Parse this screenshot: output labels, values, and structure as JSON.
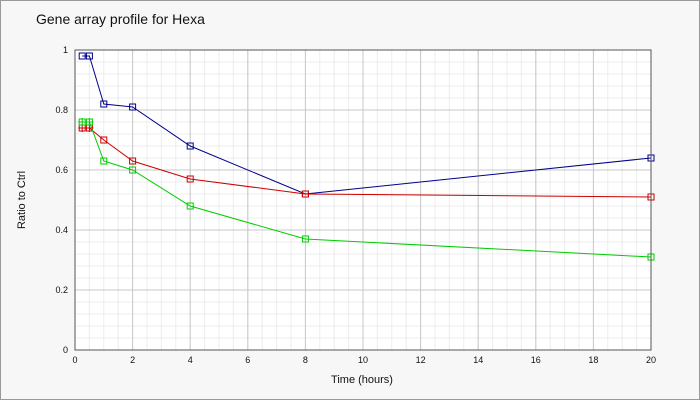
{
  "chart_data": {
    "type": "line",
    "title": "Gene array profile for Hexa",
    "xlabel": "Time (hours)",
    "ylabel": "Ratio to Ctrl",
    "xlim": [
      0,
      20
    ],
    "ylim": [
      0,
      1
    ],
    "x_ticks": [
      0,
      2,
      4,
      6,
      8,
      10,
      12,
      14,
      16,
      18,
      20
    ],
    "y_ticks": [
      0,
      0.2,
      0.4,
      0.6,
      0.8,
      1
    ],
    "y_tick_labels": [
      "0",
      "0.2",
      "0.4",
      "0.6",
      "0.8",
      "1"
    ],
    "grid": true,
    "series": [
      {
        "color": "#00008b",
        "marker": "square",
        "x": [
          0.25,
          0.5,
          1,
          2,
          4,
          8,
          20
        ],
        "y": [
          0.98,
          0.98,
          0.82,
          0.81,
          0.68,
          0.52,
          0.64
        ]
      },
      {
        "color": "#cc0000",
        "marker": "square-cross",
        "x": [
          0.25,
          0.5,
          1,
          2,
          4,
          8,
          20
        ],
        "y": [
          0.74,
          0.74,
          0.7,
          0.63,
          0.57,
          0.52,
          0.51
        ]
      },
      {
        "color": "#00cc00",
        "marker": "square-cross",
        "x": [
          0.25,
          0.5,
          1,
          2,
          4,
          8,
          20
        ],
        "y": [
          0.76,
          0.76,
          0.63,
          0.6,
          0.48,
          0.37,
          0.31
        ]
      }
    ]
  }
}
